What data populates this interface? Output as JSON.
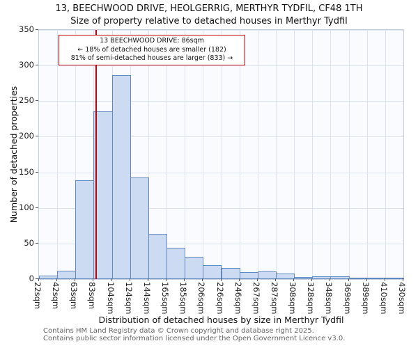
{
  "title": {
    "line1": "13, BEECHWOOD DRIVE, HEOLGERRIG, MERTHYR TYDFIL, CF48 1TH",
    "line2": "Size of property relative to detached houses in Merthyr Tydfil"
  },
  "chart_data": {
    "type": "bar",
    "title": "Size of property relative to detached houses in Merthyr Tydfil",
    "categories": [
      "22sqm",
      "42sqm",
      "63sqm",
      "83sqm",
      "104sqm",
      "124sqm",
      "144sqm",
      "165sqm",
      "185sqm",
      "206sqm",
      "226sqm",
      "246sqm",
      "267sqm",
      "287sqm",
      "308sqm",
      "328sqm",
      "348sqm",
      "369sqm",
      "389sqm",
      "410sqm",
      "430sqm"
    ],
    "bin_edges": [
      22,
      42,
      63,
      83,
      104,
      124,
      144,
      165,
      185,
      206,
      226,
      246,
      267,
      287,
      308,
      328,
      348,
      369,
      389,
      410,
      430
    ],
    "values": [
      5,
      12,
      139,
      236,
      286,
      143,
      64,
      44,
      31,
      20,
      16,
      10,
      11,
      8,
      3,
      4,
      4,
      2,
      1,
      2
    ],
    "xlabel": "Distribution of detached houses by size in Merthyr Tydfil",
    "ylabel": "Number of detached properties",
    "ylim": [
      0,
      350
    ],
    "yticks": [
      0,
      50,
      100,
      150,
      200,
      250,
      300,
      350
    ],
    "grid": "on",
    "marker": {
      "value": 86,
      "label": "13 BEECHWOOD DRIVE: 86sqm"
    },
    "annotation": {
      "line1": "13 BEECHWOOD DRIVE: 86sqm",
      "line2": "← 18% of detached houses are smaller (182)",
      "line3": "81% of semi-detached houses are larger (833) →"
    },
    "colors": {
      "bar_fill": "#ccdbf1",
      "bar_edge": "#6288c2",
      "marker_line": "#cc0000",
      "grid": "#dce2f0",
      "plot_bg": "#fafbfe"
    }
  },
  "footer": {
    "line1": "Contains HM Land Registry data © Crown copyright and database right 2025.",
    "line2": "Contains public sector information licensed under the Open Government Licence v3.0."
  }
}
